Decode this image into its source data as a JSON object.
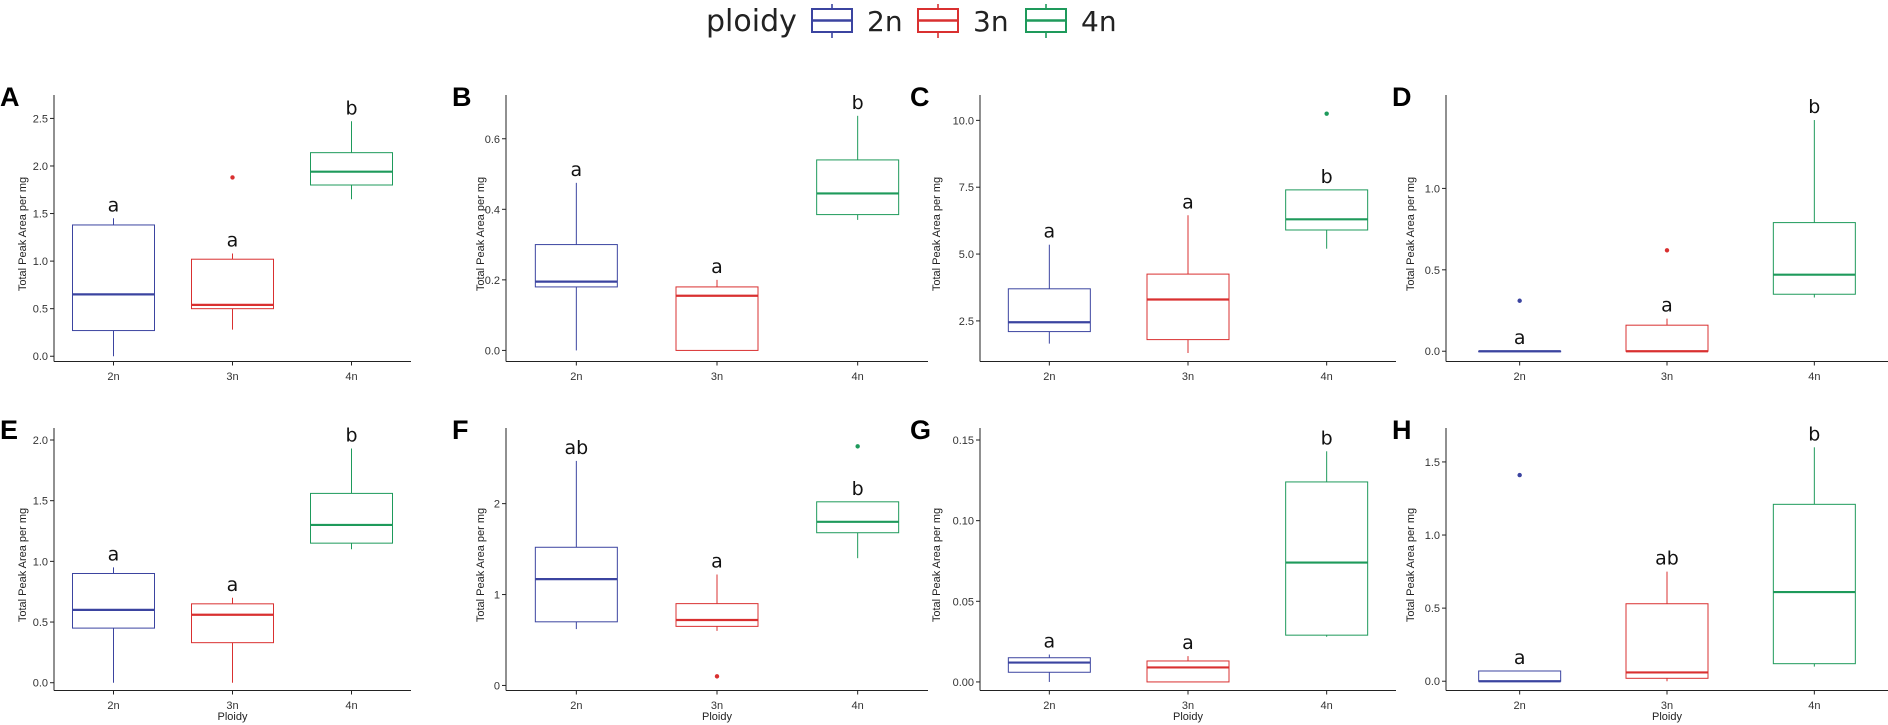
{
  "legend": {
    "title": "ploidy",
    "items": [
      {
        "label": "2n",
        "color": "#3B44A0"
      },
      {
        "label": "3n",
        "color": "#D93030"
      },
      {
        "label": "4n",
        "color": "#1E9A5B"
      }
    ]
  },
  "chart_data": [
    {
      "type": "boxplot",
      "panel": "A",
      "ylabel": "Total Peak Area per mg",
      "xlabel": "",
      "ylim": [
        -0.05,
        2.62
      ],
      "yticks": [
        0.0,
        0.5,
        1.0,
        1.5,
        2.0,
        2.5
      ],
      "ytick_labels": [
        "0.0",
        "0.5",
        "1.0",
        "1.5",
        "2.0",
        "2.5"
      ],
      "categories": [
        "2n",
        "3n",
        "4n"
      ],
      "boxes": [
        {
          "category": "2n",
          "min": 0.0,
          "q1": 0.27,
          "median": 0.65,
          "q3": 1.38,
          "max": 1.45,
          "outliers": [],
          "letter": "a"
        },
        {
          "category": "3n",
          "min": 0.28,
          "q1": 0.5,
          "median": 0.54,
          "q3": 1.02,
          "max": 1.08,
          "outliers": [
            1.88
          ],
          "letter": "a"
        },
        {
          "category": "4n",
          "min": 1.65,
          "q1": 1.8,
          "median": 1.94,
          "q3": 2.14,
          "max": 2.47,
          "outliers": [],
          "letter": "b"
        }
      ]
    },
    {
      "type": "boxplot",
      "panel": "B",
      "ylabel": "Total Peak Area per mg",
      "xlabel": "",
      "ylim": [
        -0.03,
        0.69
      ],
      "yticks": [
        0.0,
        0.2,
        0.4,
        0.6
      ],
      "ytick_labels": [
        "0.0",
        "0.2",
        "0.4",
        "0.6"
      ],
      "categories": [
        "2n",
        "3n",
        "4n"
      ],
      "boxes": [
        {
          "category": "2n",
          "min": 0.0,
          "q1": 0.18,
          "median": 0.195,
          "q3": 0.3,
          "max": 0.475,
          "outliers": [],
          "letter": "a"
        },
        {
          "category": "3n",
          "min": 0.0,
          "q1": 0.0,
          "median": 0.155,
          "q3": 0.18,
          "max": 0.2,
          "outliers": [],
          "letter": "a"
        },
        {
          "category": "4n",
          "min": 0.37,
          "q1": 0.385,
          "median": 0.445,
          "q3": 0.54,
          "max": 0.665,
          "outliers": [],
          "letter": "b"
        }
      ]
    },
    {
      "type": "boxplot",
      "panel": "C",
      "ylabel": "Total Peak Area per mg",
      "xlabel": "",
      "ylim": [
        1.0,
        10.5
      ],
      "yticks": [
        2.5,
        5.0,
        7.5,
        10.0
      ],
      "ytick_labels": [
        "2.5",
        "5.0",
        "7.5",
        "10.0"
      ],
      "categories": [
        "2n",
        "3n",
        "4n"
      ],
      "boxes": [
        {
          "category": "2n",
          "min": 1.65,
          "q1": 2.1,
          "median": 2.45,
          "q3": 3.7,
          "max": 5.35,
          "outliers": [],
          "letter": "a"
        },
        {
          "category": "3n",
          "min": 1.3,
          "q1": 1.8,
          "median": 3.3,
          "q3": 4.25,
          "max": 6.45,
          "outliers": [],
          "letter": "a"
        },
        {
          "category": "4n",
          "min": 5.2,
          "q1": 5.9,
          "median": 6.3,
          "q3": 7.4,
          "max": 7.4,
          "outliers": [
            10.25
          ],
          "letter": "b"
        }
      ]
    },
    {
      "type": "boxplot",
      "panel": "D",
      "ylabel": "Total Peak Area per mg",
      "xlabel": "",
      "ylim": [
        -0.06,
        1.5
      ],
      "yticks": [
        0.0,
        0.5,
        1.0
      ],
      "ytick_labels": [
        "0.0",
        "0.5",
        "1.0"
      ],
      "categories": [
        "2n",
        "3n",
        "4n"
      ],
      "boxes": [
        {
          "category": "2n",
          "min": 0.0,
          "q1": 0.0,
          "median": 0.0,
          "q3": 0.0,
          "max": 0.0,
          "outliers": [
            0.31
          ],
          "letter": "a"
        },
        {
          "category": "3n",
          "min": 0.0,
          "q1": 0.0,
          "median": 0.0,
          "q3": 0.16,
          "max": 0.2,
          "outliers": [
            0.62
          ],
          "letter": "a"
        },
        {
          "category": "4n",
          "min": 0.33,
          "q1": 0.35,
          "median": 0.47,
          "q3": 0.79,
          "max": 1.42,
          "outliers": [],
          "letter": "b"
        }
      ]
    },
    {
      "type": "boxplot",
      "panel": "E",
      "ylabel": "Total Peak Area per mg",
      "xlabel": "Ploidy",
      "ylim": [
        -0.06,
        2.0
      ],
      "yticks": [
        0.0,
        0.5,
        1.0,
        1.5,
        2.0
      ],
      "ytick_labels": [
        "0.0",
        "0.5",
        "1.0",
        "1.5",
        "2.0"
      ],
      "categories": [
        "2n",
        "3n",
        "4n"
      ],
      "boxes": [
        {
          "category": "2n",
          "min": 0.0,
          "q1": 0.45,
          "median": 0.6,
          "q3": 0.9,
          "max": 0.95,
          "outliers": [],
          "letter": "a"
        },
        {
          "category": "3n",
          "min": 0.0,
          "q1": 0.33,
          "median": 0.56,
          "q3": 0.65,
          "max": 0.7,
          "outliers": [],
          "letter": "a"
        },
        {
          "category": "4n",
          "min": 1.1,
          "q1": 1.15,
          "median": 1.3,
          "q3": 1.56,
          "max": 1.93,
          "outliers": [],
          "letter": "b"
        }
      ]
    },
    {
      "type": "boxplot",
      "panel": "F",
      "ylabel": "Total Peak Area per mg",
      "xlabel": "Ploidy",
      "ylim": [
        -0.05,
        2.7
      ],
      "yticks": [
        0,
        1,
        2
      ],
      "ytick_labels": [
        "0",
        "1",
        "2"
      ],
      "categories": [
        "2n",
        "3n",
        "4n"
      ],
      "boxes": [
        {
          "category": "2n",
          "min": 0.62,
          "q1": 0.7,
          "median": 1.17,
          "q3": 1.52,
          "max": 2.47,
          "outliers": [],
          "letter": "ab"
        },
        {
          "category": "3n",
          "min": 0.6,
          "q1": 0.65,
          "median": 0.72,
          "q3": 0.9,
          "max": 1.22,
          "outliers": [
            0.1
          ],
          "letter": "a"
        },
        {
          "category": "4n",
          "min": 1.4,
          "q1": 1.68,
          "median": 1.8,
          "q3": 2.02,
          "max": 2.02,
          "outliers": [
            2.63
          ],
          "letter": "b"
        }
      ]
    },
    {
      "type": "boxplot",
      "panel": "G",
      "ylabel": "Total Peak Area per mg",
      "xlabel": "Ploidy",
      "ylim": [
        -0.005,
        0.15
      ],
      "yticks": [
        0.0,
        0.05,
        0.1,
        0.15
      ],
      "ytick_labels": [
        "0.00",
        "0.05",
        "0.10",
        "0.15"
      ],
      "categories": [
        "2n",
        "3n",
        "4n"
      ],
      "boxes": [
        {
          "category": "2n",
          "min": 0.0,
          "q1": 0.006,
          "median": 0.012,
          "q3": 0.015,
          "max": 0.017,
          "outliers": [],
          "letter": "a"
        },
        {
          "category": "3n",
          "min": 0.0,
          "q1": 0.0,
          "median": 0.009,
          "q3": 0.013,
          "max": 0.016,
          "outliers": [],
          "letter": "a"
        },
        {
          "category": "4n",
          "min": 0.028,
          "q1": 0.029,
          "median": 0.074,
          "q3": 0.124,
          "max": 0.143,
          "outliers": [],
          "letter": "b"
        }
      ]
    },
    {
      "type": "boxplot",
      "panel": "H",
      "ylabel": "Total Peak Area per mg",
      "xlabel": "Ploidy",
      "ylim": [
        -0.06,
        1.65
      ],
      "yticks": [
        0.0,
        0.5,
        1.0,
        1.5
      ],
      "ytick_labels": [
        "0.0",
        "0.5",
        "1.0",
        "1.5"
      ],
      "categories": [
        "2n",
        "3n",
        "4n"
      ],
      "boxes": [
        {
          "category": "2n",
          "min": 0.0,
          "q1": 0.0,
          "median": 0.0,
          "q3": 0.07,
          "max": 0.07,
          "outliers": [
            1.41
          ],
          "letter": "a"
        },
        {
          "category": "3n",
          "min": 0.0,
          "q1": 0.02,
          "median": 0.06,
          "q3": 0.53,
          "max": 0.75,
          "outliers": [],
          "letter": "ab"
        },
        {
          "category": "4n",
          "min": 0.1,
          "q1": 0.12,
          "median": 0.61,
          "q3": 1.21,
          "max": 1.6,
          "outliers": [],
          "letter": "b"
        }
      ]
    }
  ]
}
